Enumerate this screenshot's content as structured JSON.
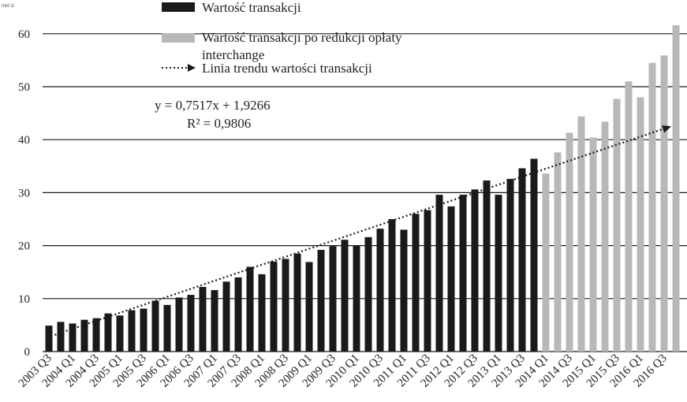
{
  "chart_data": {
    "type": "bar",
    "unit_label": "mld zł",
    "ylim": [
      0,
      65
    ],
    "yticks": [
      0,
      10,
      20,
      30,
      40,
      50,
      60
    ],
    "grid": true,
    "categories": [
      "2003 Q3",
      "2003 Q4",
      "2004 Q1",
      "2004 Q2",
      "2004 Q3",
      "2004 Q4",
      "2005 Q1",
      "2005 Q2",
      "2005 Q3",
      "2005 Q4",
      "2006 Q1",
      "2006 Q2",
      "2006 Q3",
      "2006 Q4",
      "2007 Q1",
      "2007 Q2",
      "2007 Q3",
      "2007 Q4",
      "2008 Q1",
      "2008 Q2",
      "2008 Q3",
      "2008 Q4",
      "2009 Q1",
      "2009 Q2",
      "2009 Q3",
      "2009 Q4",
      "2010 Q1",
      "2010 Q2",
      "2010 Q3",
      "2010 Q4",
      "2011 Q1",
      "2011 Q2",
      "2011 Q3",
      "2011 Q4",
      "2012 Q1",
      "2012 Q2",
      "2012 Q3",
      "2012 Q4",
      "2013 Q1",
      "2013 Q2",
      "2013 Q3",
      "2013 Q4",
      "2014 Q1",
      "2014 Q2",
      "2014 Q3",
      "2014 Q4",
      "2015 Q1",
      "2015 Q2",
      "2015 Q3",
      "2015 Q4",
      "2016 Q1",
      "2016 Q2",
      "2016 Q3",
      "2016 Q4"
    ],
    "xtick_labels": [
      "2003 Q3",
      "2004 Q1",
      "2004 Q3",
      "2005 Q1",
      "2005 Q3",
      "2006 Q1",
      "2006 Q3",
      "2007 Q1",
      "2007 Q3",
      "2008 Q1",
      "2008 Q3",
      "2009 Q1",
      "2009 Q3",
      "2010 Q1",
      "2010 Q3",
      "2011 Q1",
      "2011 Q3",
      "2012 Q1",
      "2012 Q3",
      "2013 Q1",
      "2013 Q3",
      "2014 Q1",
      "2014 Q3",
      "2015 Q1",
      "2015 Q3",
      "2016 Q1",
      "2016 Q3"
    ],
    "series": [
      {
        "name": "Wartość transakcji",
        "color": "#1a1a1a",
        "values": [
          4.9,
          5.6,
          5.3,
          6.0,
          6.3,
          7.2,
          6.8,
          7.8,
          8.1,
          9.6,
          8.8,
          10.2,
          10.7,
          12.2,
          11.6,
          13.2,
          14.0,
          16.0,
          14.6,
          17.0,
          17.5,
          18.5,
          16.9,
          19.2,
          19.9,
          21.1,
          20.0,
          21.6,
          23.2,
          25.0,
          23.0,
          26.0,
          26.7,
          29.6,
          27.4,
          29.6,
          30.6,
          32.3,
          29.6,
          32.6,
          34.6,
          36.4,
          null,
          null,
          null,
          null,
          null,
          null,
          null,
          null,
          null,
          null,
          null,
          null
        ]
      },
      {
        "name": "Wartość transakcji po redukcji opłaty interchange",
        "color": "#b8b8b8",
        "values": [
          null,
          null,
          null,
          null,
          null,
          null,
          null,
          null,
          null,
          null,
          null,
          null,
          null,
          null,
          null,
          null,
          null,
          null,
          null,
          null,
          null,
          null,
          null,
          null,
          null,
          null,
          null,
          null,
          null,
          null,
          null,
          null,
          null,
          null,
          null,
          null,
          null,
          null,
          null,
          null,
          null,
          null,
          33.6,
          37.6,
          41.3,
          44.4,
          40.4,
          43.4,
          47.7,
          51.0,
          48.0,
          54.5,
          55.9,
          61.6
        ]
      }
    ],
    "trendline": {
      "name": "Linia trendu wartości transakcji",
      "slope": 0.7517,
      "intercept": 1.9266,
      "equation_label": "y = 0,7517x + 1,9266",
      "r2_label": "R² = 0,9806"
    },
    "legend": {
      "placement": "top-center",
      "items": [
        {
          "label": "Wartość transakcji",
          "style": "bar-black"
        },
        {
          "label_line1": "Wartość transakcji po redukcji opłaty",
          "label_line2": "interchange",
          "style": "bar-gray"
        },
        {
          "label": "Linia trendu wartości transakcji",
          "style": "dotted-arrow"
        }
      ]
    }
  }
}
